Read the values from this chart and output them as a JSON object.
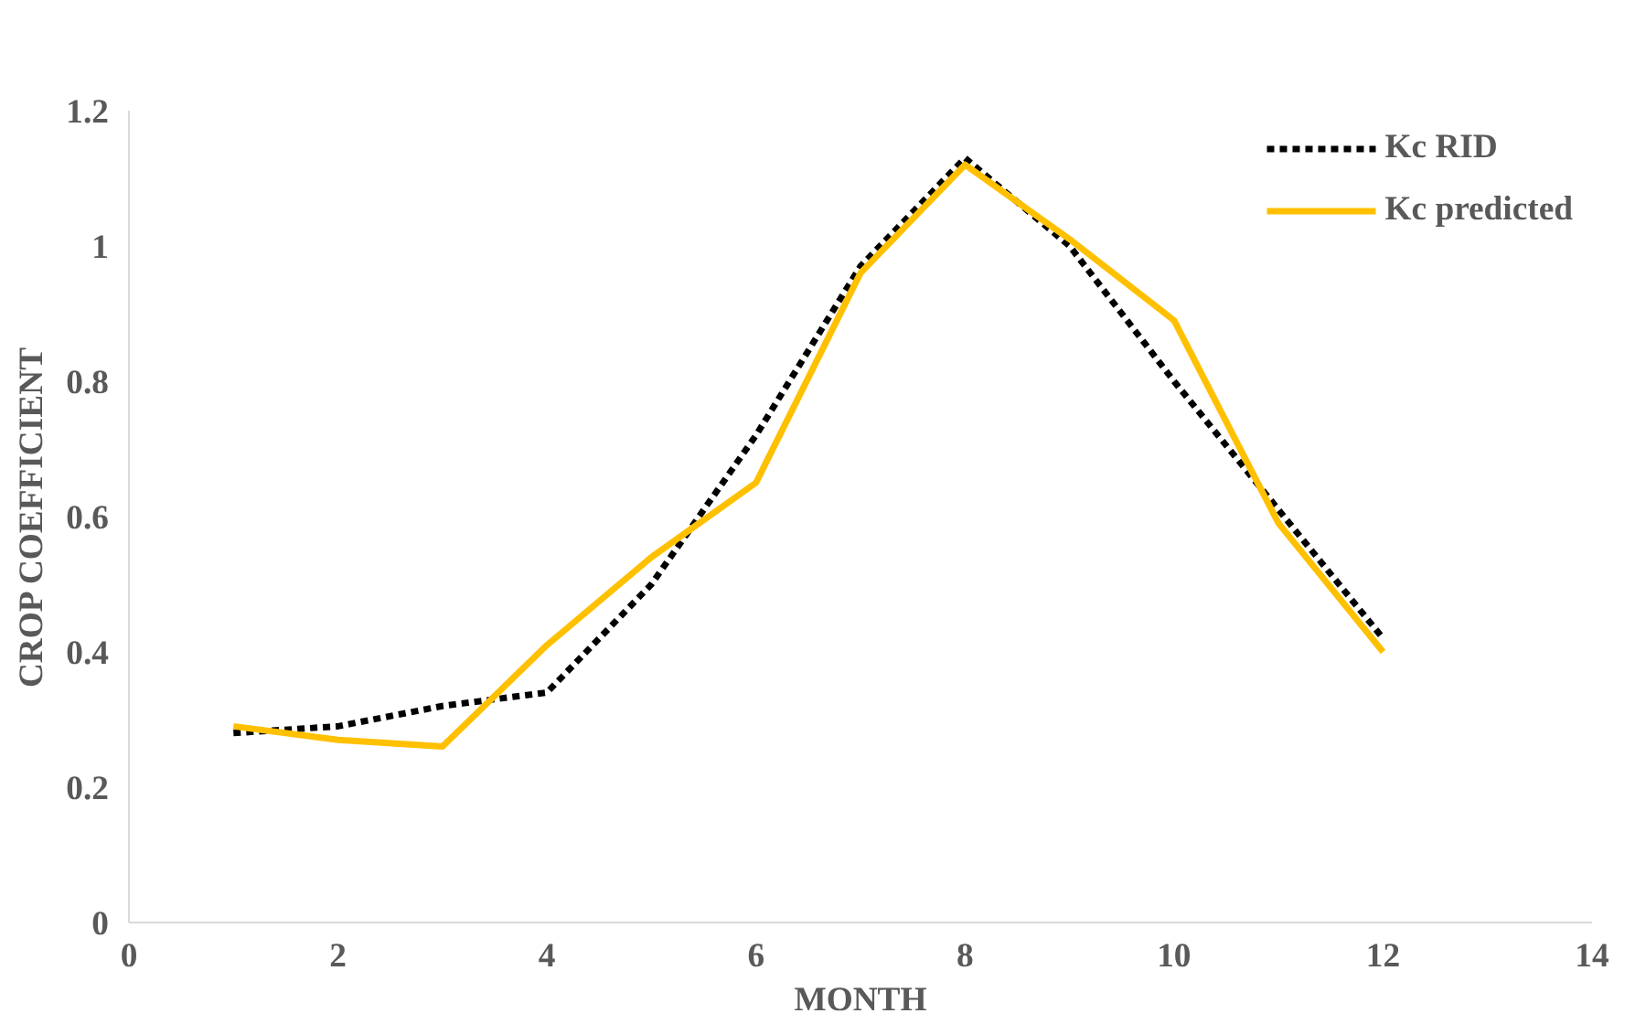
{
  "chart_data": {
    "type": "line",
    "xlabel": "MONTH",
    "ylabel": "CROP COEFFICIENT",
    "x": [
      1,
      2,
      3,
      4,
      5,
      6,
      7,
      8,
      9,
      10,
      11,
      12
    ],
    "series": [
      {
        "name": "Kc RID",
        "color": "#000000",
        "line_style": "dashed",
        "values": [
          0.28,
          0.29,
          0.32,
          0.34,
          0.5,
          0.72,
          0.97,
          1.13,
          1.0,
          0.8,
          0.61,
          0.42
        ]
      },
      {
        "name": "Kc predicted",
        "color": "#ffc000",
        "line_style": "solid",
        "values": [
          0.29,
          0.27,
          0.26,
          0.41,
          0.54,
          0.65,
          0.96,
          1.12,
          1.01,
          0.89,
          0.59,
          0.4
        ]
      }
    ],
    "xlim": [
      0,
      14
    ],
    "xticks": [
      0,
      2,
      4,
      6,
      8,
      10,
      12,
      14
    ],
    "ylim": [
      0,
      1.2
    ],
    "yticks": [
      0,
      0.2,
      0.4,
      0.6,
      0.8,
      1,
      1.2
    ],
    "grid": false,
    "legend": "top right",
    "marker": "none"
  }
}
